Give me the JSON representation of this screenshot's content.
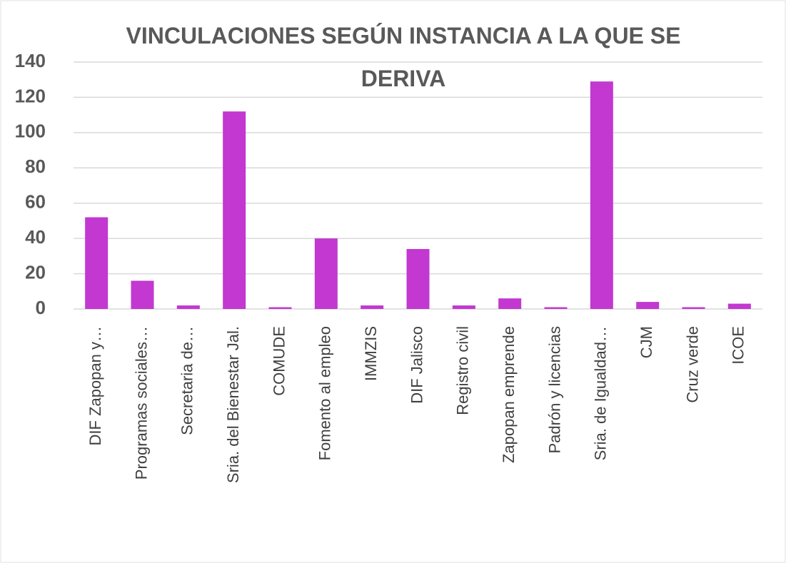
{
  "chart_data": {
    "type": "bar",
    "title": "VINCULACIONES SEGÚN INSTANCIA A LA QUE SE DERIVA",
    "categories": [
      "DIF Zapopan y…",
      "Programas sociales…",
      "Secretaria de…",
      "Sria. del Bienestar Jal.",
      "COMUDE",
      "Fomento al empleo",
      "IMMZIS",
      "DIF Jalisco",
      "Registro civil",
      "Zapopan emprende",
      "Padrón y licencias",
      "Sria. de Igualdad…",
      "CJM",
      "Cruz verde",
      "ICOE"
    ],
    "values": [
      52,
      16,
      2,
      112,
      1,
      40,
      2,
      34,
      2,
      6,
      1,
      129,
      4,
      1,
      3
    ],
    "color": "#c238d1",
    "ylim": [
      0,
      140
    ],
    "yticks": [
      0,
      20,
      40,
      60,
      80,
      100,
      120,
      140
    ],
    "grid": true
  }
}
